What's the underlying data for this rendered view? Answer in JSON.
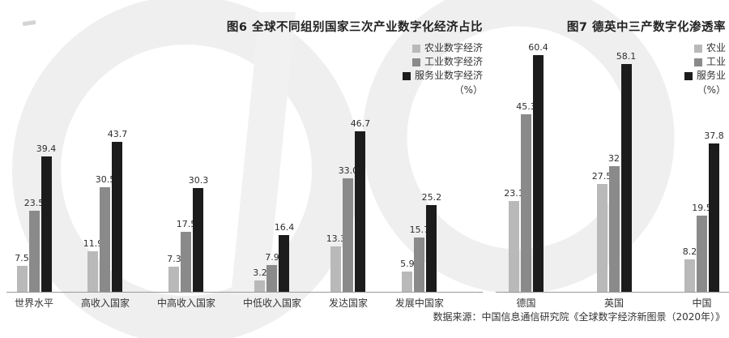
{
  "figure": {
    "source_note": "数据来源：中国信息通信研究院《全球数字经济新图景（2020年）》"
  },
  "chart_data": [
    {
      "type": "bar",
      "title": "图6 全球不同组别国家三次产业数字化经济占比",
      "unit_label": "（%）",
      "categories": [
        "世界水平",
        "高收入国家",
        "中高收入国家",
        "中低收入国家",
        "发达国家",
        "发展中国家"
      ],
      "series": [
        {
          "name": "农业数字经济",
          "color": "#b9b9b9",
          "values": [
            7.5,
            11.9,
            7.3,
            3.2,
            13.3,
            5.9
          ],
          "labels": [
            "7.5",
            "11.9",
            "7.3",
            "3.2",
            "13.3",
            "5.9"
          ]
        },
        {
          "name": "工业数字经济",
          "color": "#8a8a8a",
          "values": [
            23.5,
            30.5,
            17.5,
            7.9,
            33.0,
            15.7
          ],
          "labels": [
            "23.5",
            "30.5",
            "17.5",
            "7.9",
            "33.0",
            "15.7"
          ]
        },
        {
          "name": "服务业数字经济",
          "color": "#1c1c1c",
          "values": [
            39.4,
            43.7,
            30.3,
            16.4,
            46.7,
            25.2
          ],
          "labels": [
            "39.4",
            "43.7",
            "30.3",
            "16.4",
            "46.7",
            "25.2"
          ]
        }
      ],
      "ylim": [
        0,
        50
      ],
      "grid": false,
      "legend_position": "top-right"
    },
    {
      "type": "bar",
      "title": "图7 德英中三产数字化渗透率",
      "unit_label": "（%）",
      "categories": [
        "德国",
        "英国",
        "中国"
      ],
      "series": [
        {
          "name": "农业",
          "color": "#b9b9b9",
          "values": [
            23.1,
            27.5,
            8.2
          ],
          "labels": [
            "23.1",
            "27.5",
            "8.2"
          ]
        },
        {
          "name": "工业",
          "color": "#8a8a8a",
          "values": [
            45.3,
            32,
            19.5
          ],
          "labels": [
            "45.3",
            "32",
            "19.5"
          ]
        },
        {
          "name": "服务业",
          "color": "#1c1c1c",
          "values": [
            60.4,
            58.1,
            37.8
          ],
          "labels": [
            "60.4",
            "58.1",
            "37.8"
          ]
        }
      ],
      "ylim": [
        0,
        62
      ],
      "grid": false,
      "legend_position": "top-right"
    }
  ]
}
